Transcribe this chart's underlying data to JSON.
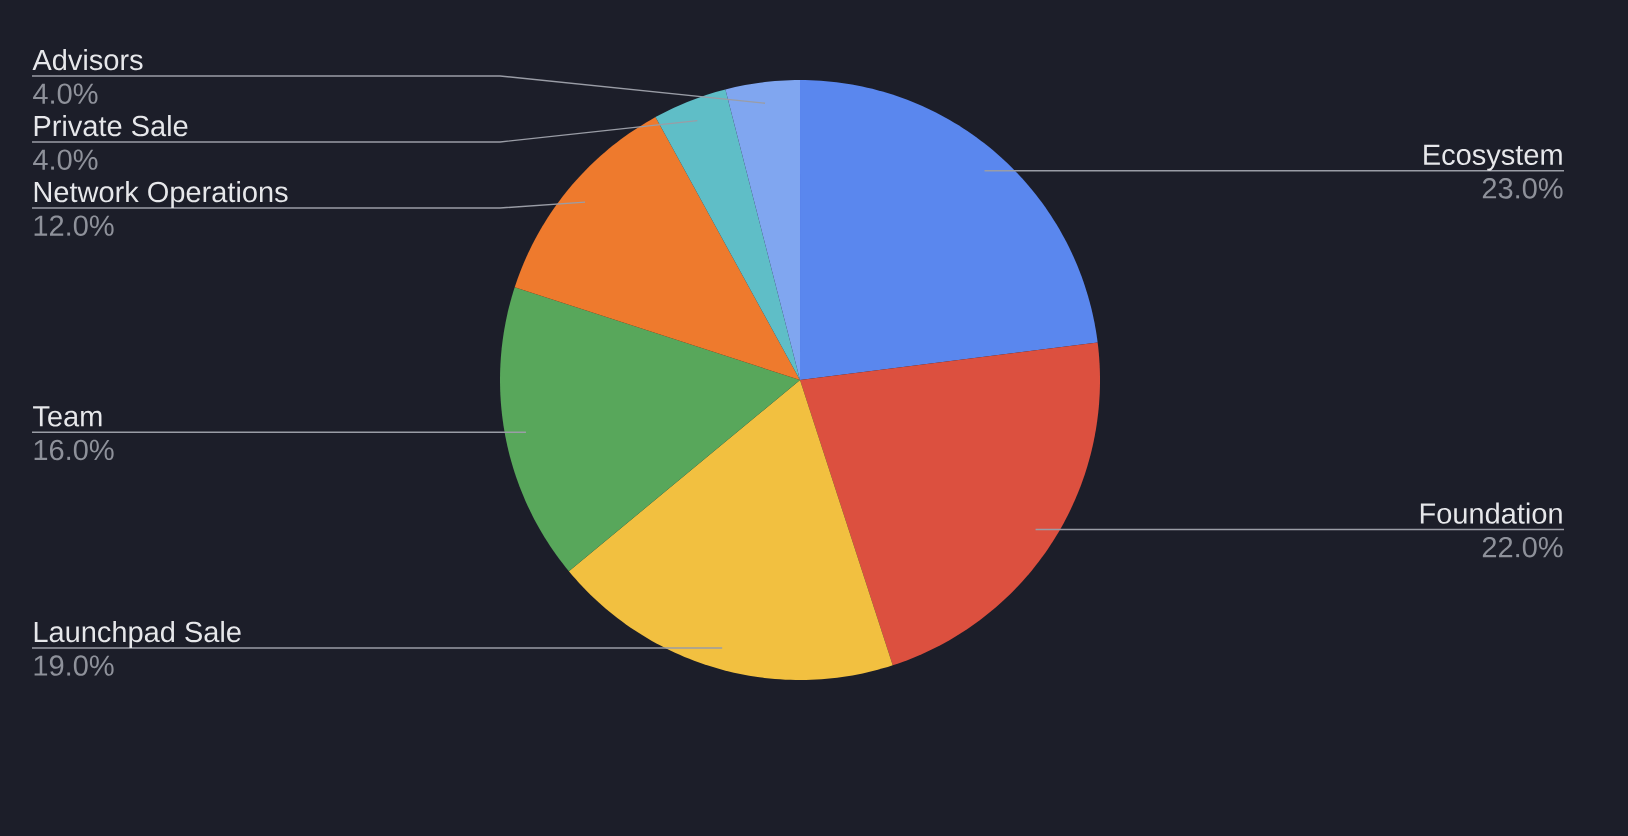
{
  "chart_data": {
    "type": "pie",
    "categories": [
      "Ecosystem",
      "Foundation",
      "Launchpad Sale",
      "Team",
      "Network Operations",
      "Private Sale",
      "Advisors"
    ],
    "values": [
      23,
      22,
      19,
      16,
      12,
      4,
      4
    ],
    "colors": [
      "#5a87ee",
      "#dc503f",
      "#f2c040",
      "#58a75b",
      "#ee7a2d",
      "#5fbec7",
      "#80a6f0"
    ],
    "value_labels": [
      "23.0%",
      "22.0%",
      "19.0%",
      "16.0%",
      "12.0%",
      "4.0%",
      "4.0%"
    ]
  }
}
